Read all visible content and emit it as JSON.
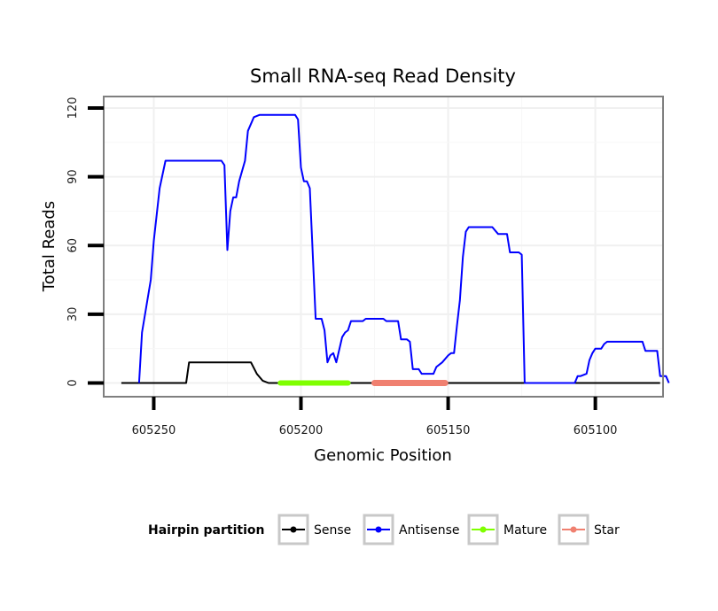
{
  "chart_data": {
    "type": "line",
    "title": "Small RNA-seq Read Density",
    "xlabel": "Genomic Position",
    "ylabel": "Total Reads",
    "xlim": [
      605267,
      605077
    ],
    "ylim": [
      -6,
      125
    ],
    "x_ticks": [
      605250,
      605200,
      605150,
      605100
    ],
    "y_ticks": [
      0,
      30,
      60,
      90,
      120
    ],
    "grid": true,
    "legend": {
      "title": "Hairpin partition",
      "position": "bottom",
      "entries": [
        "Sense",
        "Antisense",
        "Mature",
        "Star"
      ]
    },
    "series": [
      {
        "name": "Sense",
        "color": "#000000",
        "width": 2,
        "points": [
          [
            605261,
            0
          ],
          [
            605239,
            0
          ],
          [
            605238,
            9
          ],
          [
            605217,
            9
          ],
          [
            605215,
            4
          ],
          [
            605213,
            1
          ],
          [
            605211,
            0
          ],
          [
            605078,
            0
          ]
        ]
      },
      {
        "name": "Antisense",
        "color": "#0000ff",
        "width": 2,
        "points": [
          [
            605255,
            0
          ],
          [
            605254,
            22
          ],
          [
            605251,
            45
          ],
          [
            605250,
            62
          ],
          [
            605248,
            85
          ],
          [
            605246,
            97
          ],
          [
            605227,
            97
          ],
          [
            605226,
            95
          ],
          [
            605225,
            58
          ],
          [
            605224,
            75
          ],
          [
            605223,
            81
          ],
          [
            605222,
            81
          ],
          [
            605221,
            88
          ],
          [
            605219,
            97
          ],
          [
            605218,
            110
          ],
          [
            605216,
            116
          ],
          [
            605214,
            117
          ],
          [
            605202,
            117
          ],
          [
            605201,
            115
          ],
          [
            605200,
            94
          ],
          [
            605199,
            88
          ],
          [
            605198,
            88
          ],
          [
            605197,
            85
          ],
          [
            605195,
            28
          ],
          [
            605193,
            28
          ],
          [
            605192,
            23
          ],
          [
            605191,
            9
          ],
          [
            605190,
            12
          ],
          [
            605189,
            13
          ],
          [
            605188,
            9
          ],
          [
            605186,
            20
          ],
          [
            605185,
            22
          ],
          [
            605184,
            23
          ],
          [
            605183,
            27
          ],
          [
            605179,
            27
          ],
          [
            605178,
            28
          ],
          [
            605172,
            28
          ],
          [
            605171,
            27
          ],
          [
            605167,
            27
          ],
          [
            605166,
            19
          ],
          [
            605164,
            19
          ],
          [
            605163,
            18
          ],
          [
            605162,
            6
          ],
          [
            605160,
            6
          ],
          [
            605159,
            4
          ],
          [
            605155,
            4
          ],
          [
            605154,
            7
          ],
          [
            605152,
            9
          ],
          [
            605150,
            12
          ],
          [
            605149,
            13
          ],
          [
            605148,
            13
          ],
          [
            605147,
            25
          ],
          [
            605146,
            36
          ],
          [
            605145,
            55
          ],
          [
            605144,
            66
          ],
          [
            605143,
            68
          ],
          [
            605135,
            68
          ],
          [
            605133,
            65
          ],
          [
            605130,
            65
          ],
          [
            605129,
            57
          ],
          [
            605126,
            57
          ],
          [
            605125,
            56
          ],
          [
            605124,
            0
          ],
          [
            605107,
            0
          ],
          [
            605106,
            3
          ],
          [
            605105,
            3
          ],
          [
            605103,
            4
          ],
          [
            605102,
            10
          ],
          [
            605101,
            13
          ],
          [
            605100,
            15
          ],
          [
            605098,
            15
          ],
          [
            605097,
            17
          ],
          [
            605096,
            18
          ],
          [
            605084,
            18
          ],
          [
            605083,
            14
          ],
          [
            605079,
            14
          ],
          [
            605078,
            3
          ],
          [
            605076,
            3
          ],
          [
            605075,
            0
          ]
        ]
      },
      {
        "name": "Mature",
        "color": "#7fff00",
        "width": 6,
        "points": [
          [
            605207,
            0
          ],
          [
            605184,
            0
          ]
        ]
      },
      {
        "name": "Star",
        "color": "#f08070",
        "width": 7,
        "points": [
          [
            605175,
            0
          ],
          [
            605151,
            0
          ]
        ]
      }
    ]
  }
}
